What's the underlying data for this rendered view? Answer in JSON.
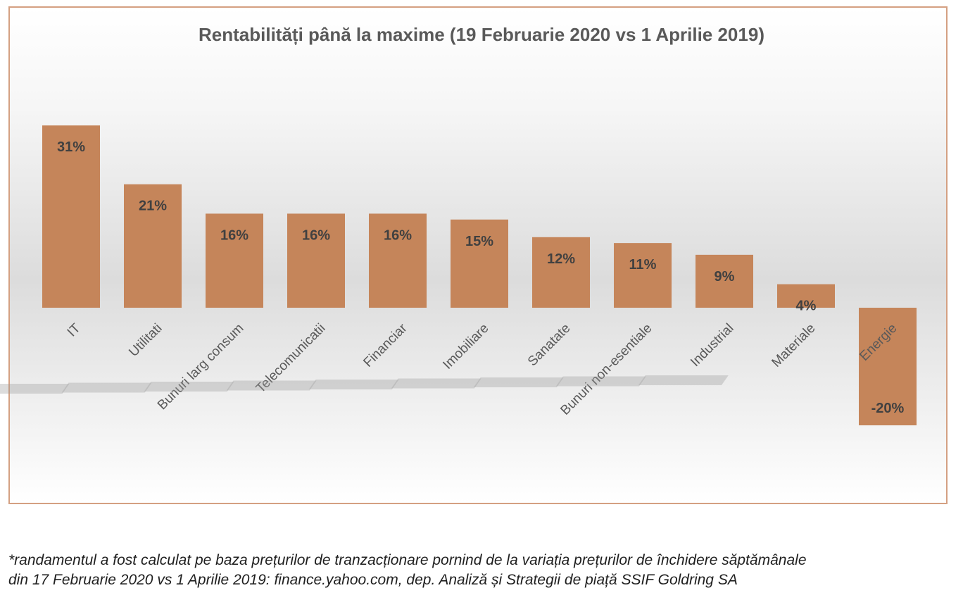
{
  "chart_data": {
    "type": "bar",
    "title": "Rentabilități până la maxime (19 Februarie 2020 vs 1 Aprilie 2019)",
    "xlabel": "",
    "ylabel": "",
    "categories": [
      "IT",
      "Utilitati",
      "Bunuri larg consum",
      "Telecomunicatii",
      "Financiar",
      "Imobiliare",
      "Sanatate",
      "Bunuri non-esentiale",
      "Industrial",
      "Materiale",
      "Energie"
    ],
    "values": [
      31,
      21,
      16,
      16,
      16,
      15,
      12,
      11,
      9,
      4,
      -20
    ],
    "data_labels": [
      "31%",
      "21%",
      "16%",
      "16%",
      "16%",
      "15%",
      "12%",
      "11%",
      "9%",
      "4%",
      "-20%"
    ],
    "unit": "%",
    "ylim": [
      -20,
      31
    ],
    "grid": false,
    "legend": "none",
    "bar_color": "#c5855a"
  },
  "footnote": {
    "line1": "*randamentul a fost calculat pe baza prețurilor de tranzacționare  pornind de la variația prețurilor de închidere săptămânale",
    "line2": "din 17 Februarie 2020 vs 1 Aprilie 2019: finance.yahoo.com, dep. Analiză și Strategii de piață SSIF Goldring SA"
  }
}
